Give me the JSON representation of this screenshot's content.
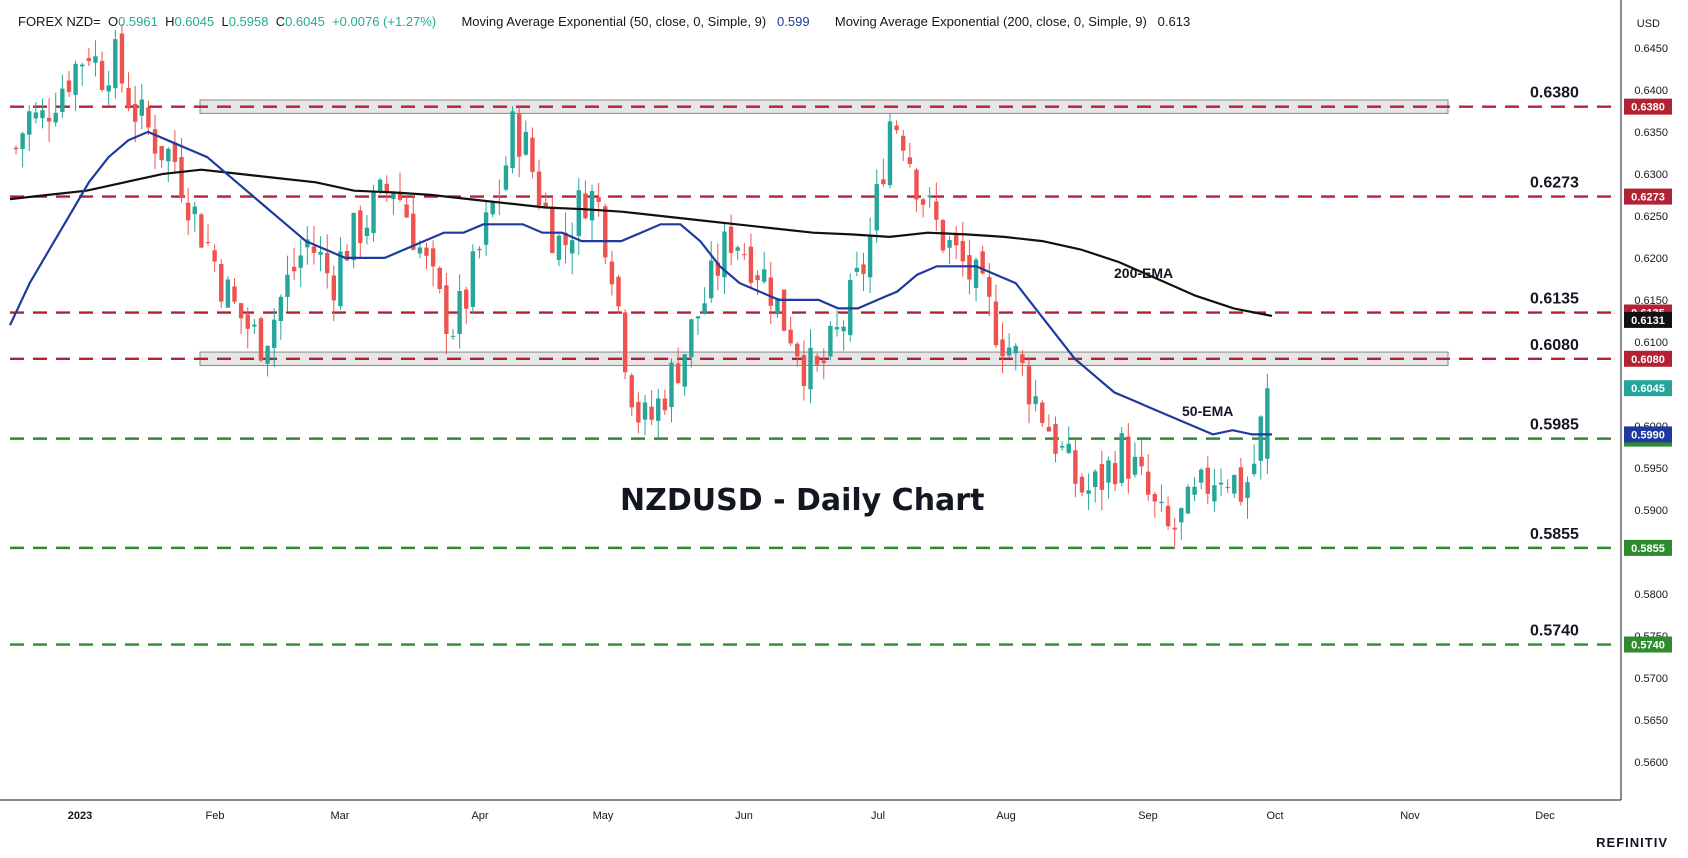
{
  "header": {
    "symbol": "FOREX NZD=",
    "o_label": "O",
    "o_val": "0.5961",
    "h_label": "H",
    "h_val": "0.6045",
    "l_label": "L",
    "l_val": "0.5958",
    "c_label": "C",
    "c_val": "0.6045",
    "change": "+0.0076 (+1.27%)",
    "ema50_label": "Moving Average Exponential (50, close, 0, Simple, 9)",
    "ema50_val": "0.599",
    "ema200_label": "Moving Average Exponential (200, close, 0, Simple, 9)",
    "ema200_val": "0.613"
  },
  "brand": "REFINITIV",
  "colors": {
    "bull": "#26a69a",
    "bear": "#ef5350",
    "ema50": "#1e3a9e",
    "ema200": "#111111",
    "resistance": "#b22234",
    "support": "#2e8b2e",
    "up_text": "#22ab94"
  },
  "chart_data": {
    "type": "candlestick",
    "title": "NZDUSD - Daily Chart",
    "y_unit": "USD",
    "ylim": [
      0.5555,
      0.6495
    ],
    "y_ticks": [
      "0.6450",
      "0.6400",
      "0.6350",
      "0.6300",
      "0.6250",
      "0.6200",
      "0.6150",
      "0.6100",
      "0.6050",
      "0.6000",
      "0.5950",
      "0.5900",
      "0.5850",
      "0.5800",
      "0.5750",
      "0.5700",
      "0.5650",
      "0.5600"
    ],
    "x_labels": [
      "2023",
      "Feb",
      "Mar",
      "Apr",
      "May",
      "Jun",
      "Jul",
      "Aug",
      "Sep",
      "Oct",
      "Nov",
      "Dec"
    ],
    "levels": [
      {
        "value": "0.6380",
        "kind": "resistance"
      },
      {
        "value": "0.6273",
        "kind": "resistance"
      },
      {
        "value": "0.6135",
        "kind": "resistance"
      },
      {
        "value": "0.6080",
        "kind": "resistance"
      },
      {
        "value": "0.5985",
        "kind": "support"
      },
      {
        "value": "0.5855",
        "kind": "support"
      },
      {
        "value": "0.5740",
        "kind": "support"
      }
    ],
    "zones": [
      {
        "from_month": "Jan",
        "to_month": "Nov",
        "low": 0.6372,
        "high": 0.6388
      },
      {
        "from_month": "Jan",
        "to_month": "Nov",
        "low": 0.6072,
        "high": 0.6088
      }
    ],
    "price_tags": [
      {
        "value": "0.6135",
        "color": "#b22234"
      },
      {
        "value": "0.6131",
        "color": "#111111"
      },
      {
        "value": "0.6045",
        "color": "#26a69a"
      },
      {
        "value": "0.5990",
        "color": "#1e3a9e"
      }
    ],
    "annotations": [
      "200-EMA",
      "50-EMA"
    ],
    "close_path": [
      0.633,
      0.637,
      0.636,
      0.639,
      0.641,
      0.643,
      0.645,
      0.642,
      0.644,
      0.64,
      0.637,
      0.635,
      0.633,
      0.632,
      0.628,
      0.624,
      0.621,
      0.617,
      0.614,
      0.612,
      0.61,
      0.612,
      0.616,
      0.619,
      0.622,
      0.62,
      0.617,
      0.621,
      0.623,
      0.625,
      0.627,
      0.629,
      0.626,
      0.622,
      0.618,
      0.614,
      0.612,
      0.615,
      0.62,
      0.625,
      0.629,
      0.636,
      0.633,
      0.628,
      0.624,
      0.621,
      0.625,
      0.628,
      0.626,
      0.62,
      0.61,
      0.602,
      0.6,
      0.603,
      0.606,
      0.609,
      0.613,
      0.616,
      0.62,
      0.623,
      0.621,
      0.619,
      0.617,
      0.613,
      0.611,
      0.607,
      0.606,
      0.609,
      0.612,
      0.616,
      0.62,
      0.628,
      0.637,
      0.635,
      0.63,
      0.626,
      0.623,
      0.621,
      0.619,
      0.617,
      0.614,
      0.611,
      0.609,
      0.606,
      0.603,
      0.6,
      0.597,
      0.594,
      0.592,
      0.593,
      0.595,
      0.597,
      0.595,
      0.592,
      0.589,
      0.587,
      0.589,
      0.591,
      0.593,
      0.595,
      0.594,
      0.592,
      0.596,
      0.6045
    ],
    "ema50_path": [
      0.612,
      0.617,
      0.621,
      0.625,
      0.629,
      0.632,
      0.634,
      0.635,
      0.634,
      0.633,
      0.632,
      0.63,
      0.628,
      0.626,
      0.624,
      0.622,
      0.621,
      0.62,
      0.62,
      0.62,
      0.621,
      0.622,
      0.623,
      0.623,
      0.624,
      0.624,
      0.624,
      0.623,
      0.623,
      0.622,
      0.622,
      0.622,
      0.623,
      0.624,
      0.624,
      0.622,
      0.619,
      0.617,
      0.616,
      0.615,
      0.615,
      0.615,
      0.614,
      0.614,
      0.615,
      0.616,
      0.618,
      0.619,
      0.619,
      0.619,
      0.618,
      0.617,
      0.614,
      0.611,
      0.608,
      0.606,
      0.604,
      0.603,
      0.602,
      0.601,
      0.6,
      0.599,
      0.5995,
      0.599,
      0.599
    ],
    "ema200_path": [
      0.627,
      0.6275,
      0.628,
      0.629,
      0.63,
      0.6305,
      0.63,
      0.6295,
      0.629,
      0.628,
      0.6278,
      0.6275,
      0.627,
      0.6265,
      0.626,
      0.6258,
      0.6255,
      0.625,
      0.6245,
      0.624,
      0.6235,
      0.623,
      0.6228,
      0.6225,
      0.623,
      0.6228,
      0.6225,
      0.622,
      0.621,
      0.6195,
      0.6175,
      0.6155,
      0.614,
      0.6131
    ]
  }
}
